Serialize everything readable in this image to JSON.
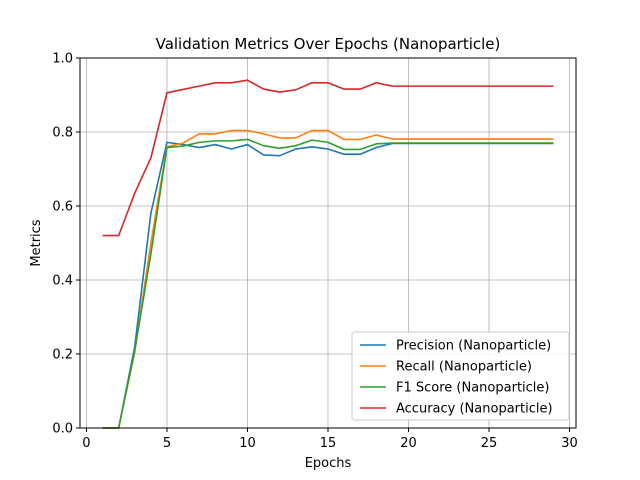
{
  "chart_data": {
    "type": "line",
    "title": "Validation Metrics Over Epochs (Nanoparticle)",
    "xlabel": "Epochs",
    "ylabel": "Metrics",
    "xlim": [
      -0.4,
      30.4
    ],
    "ylim": [
      0.0,
      1.0
    ],
    "xticks": [
      0,
      5,
      10,
      15,
      20,
      25,
      30
    ],
    "yticks": [
      0.0,
      0.2,
      0.4,
      0.6,
      0.8,
      1.0
    ],
    "xtick_labels": [
      "0",
      "5",
      "10",
      "15",
      "20",
      "25",
      "30"
    ],
    "ytick_labels": [
      "0.0",
      "0.2",
      "0.4",
      "0.6",
      "0.8",
      "1.0"
    ],
    "grid": true,
    "legend_position": "lower-right",
    "x": [
      1,
      2,
      3,
      4,
      5,
      6,
      7,
      8,
      9,
      10,
      11,
      12,
      13,
      14,
      15,
      16,
      17,
      18,
      19,
      20,
      21,
      22,
      23,
      24,
      25,
      26,
      27,
      28,
      29
    ],
    "series": [
      {
        "name": "Precision (Nanoparticle)",
        "color": "#1f77b4",
        "values": [
          0.0,
          0.0,
          0.22,
          0.58,
          0.772,
          0.766,
          0.758,
          0.766,
          0.754,
          0.766,
          0.738,
          0.736,
          0.754,
          0.76,
          0.754,
          0.74,
          0.74,
          0.758,
          0.769,
          0.769,
          0.769,
          0.769,
          0.769,
          0.769,
          0.769,
          0.769,
          0.769,
          0.769,
          0.769
        ]
      },
      {
        "name": "Recall (Nanoparticle)",
        "color": "#ff7f0e",
        "values": [
          0.0,
          0.0,
          0.205,
          0.5,
          0.76,
          0.77,
          0.795,
          0.795,
          0.804,
          0.804,
          0.795,
          0.784,
          0.784,
          0.804,
          0.804,
          0.78,
          0.78,
          0.792,
          0.781,
          0.781,
          0.781,
          0.781,
          0.781,
          0.781,
          0.781,
          0.781,
          0.781,
          0.781,
          0.781
        ]
      },
      {
        "name": "F1 Score (Nanoparticle)",
        "color": "#2ca02c",
        "values": [
          0.0,
          0.0,
          0.21,
          0.47,
          0.758,
          0.762,
          0.772,
          0.776,
          0.776,
          0.78,
          0.763,
          0.756,
          0.763,
          0.778,
          0.772,
          0.753,
          0.753,
          0.768,
          0.77,
          0.77,
          0.77,
          0.77,
          0.77,
          0.77,
          0.77,
          0.77,
          0.77,
          0.77,
          0.77
        ]
      },
      {
        "name": "Accuracy (Nanoparticle)",
        "color": "#d62728",
        "values": [
          0.52,
          0.52,
          0.635,
          0.73,
          0.906,
          0.915,
          0.924,
          0.933,
          0.933,
          0.94,
          0.916,
          0.908,
          0.914,
          0.933,
          0.933,
          0.916,
          0.916,
          0.933,
          0.924,
          0.924,
          0.924,
          0.924,
          0.924,
          0.924,
          0.924,
          0.924,
          0.924,
          0.924,
          0.924
        ]
      }
    ]
  }
}
